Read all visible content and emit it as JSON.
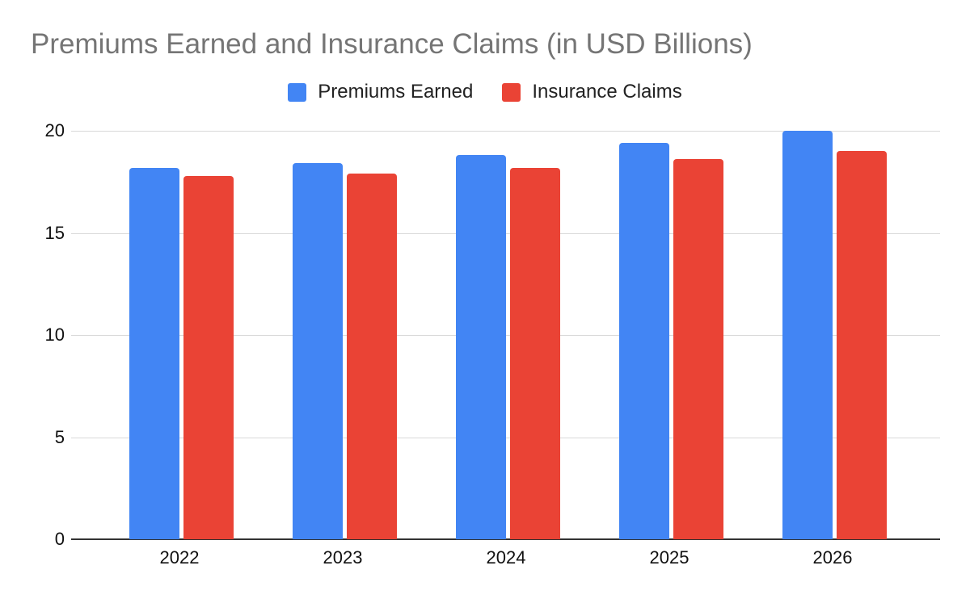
{
  "title": "Premiums Earned and Insurance Claims (in USD Billions)",
  "colors": {
    "premiums_blue": "#4285F4",
    "claims_red": "#EA4335",
    "title_gray": "#757575",
    "gridline": "#D9D9D9",
    "axis_line": "#333333",
    "label_text": "#111111"
  },
  "legend": {
    "items": [
      {
        "label": "Premiums Earned",
        "color": "#4285F4"
      },
      {
        "label": "Insurance Claims",
        "color": "#EA4335"
      }
    ]
  },
  "chart_data": {
    "type": "bar",
    "title": "Premiums Earned and Insurance Claims (in USD Billions)",
    "categories": [
      "2022",
      "2023",
      "2024",
      "2025",
      "2026"
    ],
    "series": [
      {
        "name": "Premiums Earned",
        "color": "#4285F4",
        "values": [
          18.2,
          18.4,
          18.8,
          19.4,
          20.0
        ]
      },
      {
        "name": "Insurance Claims",
        "color": "#EA4335",
        "values": [
          17.8,
          17.9,
          18.2,
          18.6,
          19.0
        ]
      }
    ],
    "xlabel": "",
    "ylabel": "",
    "ylim": [
      0,
      20
    ],
    "yticks": [
      0,
      5,
      10,
      15,
      20
    ],
    "grid": true,
    "legend_position": "top"
  }
}
